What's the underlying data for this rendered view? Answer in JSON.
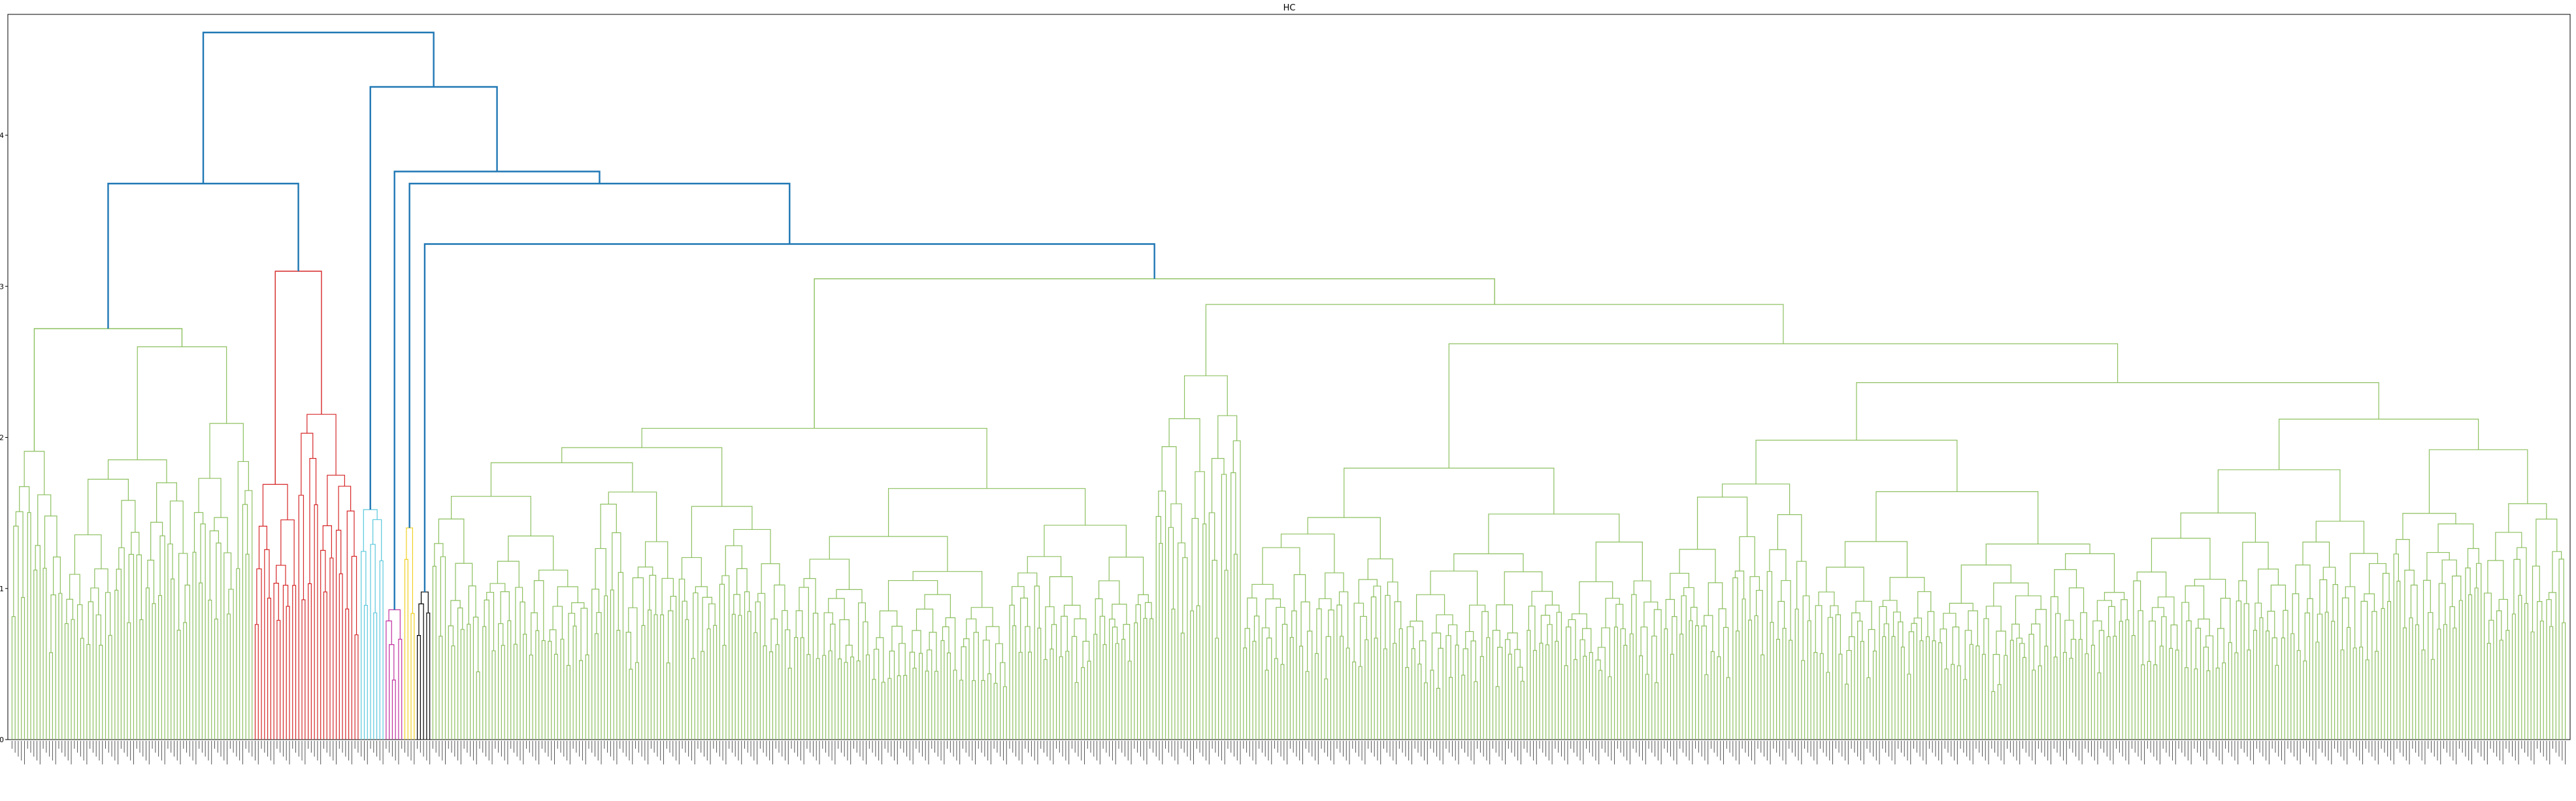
{
  "chart_data": {
    "type": "dendrogram",
    "title": "HC",
    "xlabel": "",
    "ylabel": "",
    "ylim": [
      0,
      4.8
    ],
    "yticks": [
      0,
      1,
      2,
      3,
      4
    ],
    "grid": false,
    "leaf_count": 820,
    "cluster_colors": {
      "above_threshold": "#1f77b4",
      "cluster_green": "#8dc060",
      "cluster_red": "#d62728",
      "cluster_cyan": "#5ac8dc",
      "cluster_magenta": "#c030a0",
      "cluster_yellow": "#f0d020",
      "cluster_black": "#000000"
    },
    "clusters": [
      {
        "color": "cluster_green",
        "leaf_start": 0,
        "leaf_end": 78,
        "merge_height": 2.72,
        "subclusters": [
          {
            "leaf_start": 0,
            "leaf_end": 17,
            "height": 2.15
          },
          {
            "leaf_start": 17,
            "leaf_end": 78,
            "height": 2.6,
            "children": [
              {
                "leaf_start": 17,
                "leaf_end": 58,
                "height": 1.98
              },
              {
                "leaf_start": 58,
                "leaf_end": 78,
                "height": 2.3
              }
            ]
          }
        ]
      },
      {
        "color": "cluster_red",
        "leaf_start": 78,
        "leaf_end": 112,
        "merge_height": 3.1,
        "subclusters": [
          {
            "leaf_start": 78,
            "leaf_end": 92,
            "height": 1.82
          },
          {
            "leaf_start": 92,
            "leaf_end": 112,
            "height": 2.35
          }
        ]
      },
      {
        "color": "cluster_cyan",
        "leaf_start": 112,
        "leaf_end": 120,
        "merge_height": 1.82
      },
      {
        "color": "cluster_magenta",
        "leaf_start": 120,
        "leaf_end": 126,
        "merge_height": 1.08
      },
      {
        "color": "cluster_yellow",
        "leaf_start": 126,
        "leaf_end": 130,
        "merge_height": 1.5
      },
      {
        "color": "cluster_black",
        "leaf_start": 130,
        "leaf_end": 135,
        "merge_height": 1.12
      },
      {
        "color": "cluster_green",
        "leaf_start": 135,
        "leaf_end": 820,
        "merge_height": 3.05,
        "subclusters": [
          {
            "leaf_start": 135,
            "leaf_end": 367,
            "height": 2.18
          },
          {
            "leaf_start": 367,
            "leaf_end": 820,
            "height": 2.88,
            "children": [
              {
                "leaf_start": 367,
                "leaf_end": 395,
                "height": 2.6
              },
              {
                "leaf_start": 395,
                "leaf_end": 820,
                "height": 2.62,
                "children": [
                  {
                    "leaf_start": 395,
                    "leaf_end": 530,
                    "height": 2.05
                  },
                  {
                    "leaf_start": 530,
                    "leaf_end": 820,
                    "height": 2.48
                  }
                ]
              }
            ]
          }
        ]
      }
    ],
    "top_links": [
      {
        "left": "cluster_0",
        "right": "cluster_1",
        "height": 3.68
      },
      {
        "left": "cluster_5",
        "right": "cluster_6",
        "height": 3.28
      },
      {
        "left": "cluster_4",
        "right": "link_1",
        "height": 3.68
      },
      {
        "left": "cluster_3",
        "right": "link_2",
        "height": 3.76
      },
      {
        "left": "cluster_2",
        "right": "link_3",
        "height": 4.32
      },
      {
        "left": "link_0",
        "right": "link_4",
        "height": 4.68
      }
    ]
  }
}
